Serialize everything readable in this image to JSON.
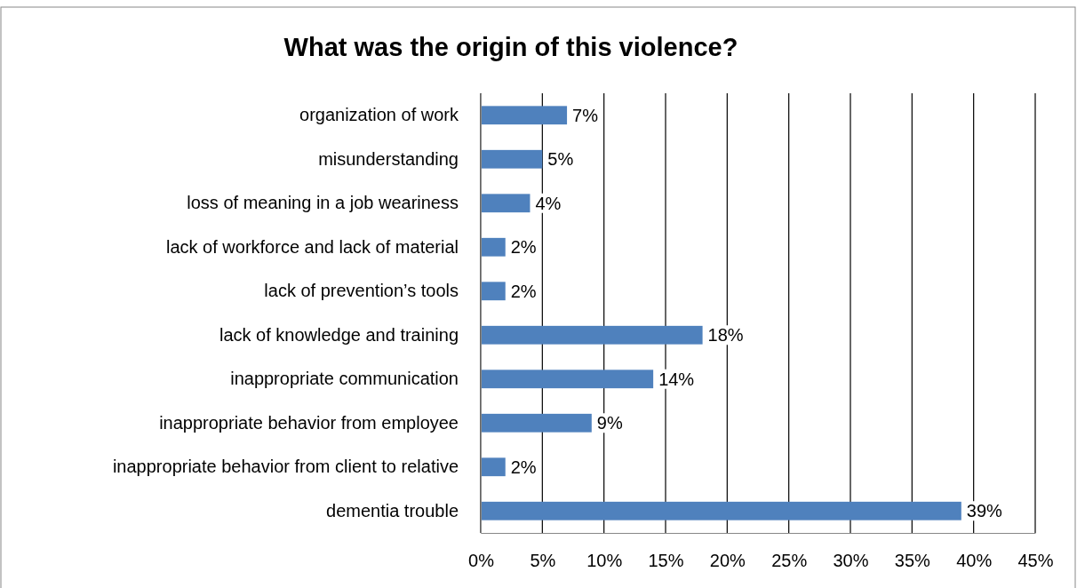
{
  "chart_data": {
    "type": "bar",
    "orientation": "horizontal",
    "title": "What was the origin of this violence?",
    "categories": [
      "organization of work",
      "misunderstanding",
      "loss of meaning in a job weariness",
      "lack of workforce and lack of material",
      "lack of prevention’s tools",
      "lack of knowledge and training",
      "inappropriate communication",
      "inappropriate behavior from employee",
      "inappropriate behavior from client to relative",
      "dementia trouble"
    ],
    "values": [
      7,
      5,
      4,
      2,
      2,
      18,
      14,
      9,
      2,
      39
    ],
    "color": "#4f81bd",
    "xlim": [
      0,
      45
    ],
    "xticks": [
      {
        "value": 0,
        "label": "0%"
      },
      {
        "value": 5,
        "label": "5%"
      },
      {
        "value": 10,
        "label": "10%"
      },
      {
        "value": 15,
        "label": "15%"
      },
      {
        "value": 20,
        "label": "20%"
      },
      {
        "value": 25,
        "label": "25%"
      },
      {
        "value": 30,
        "label": "30%"
      },
      {
        "value": 35,
        "label": "35%"
      },
      {
        "value": 40,
        "label": "40%"
      },
      {
        "value": 45,
        "label": "45%"
      }
    ],
    "value_labels": [
      "7%",
      "5%",
      "4%",
      "2%",
      "2%",
      "18%",
      "14%",
      "9%",
      "2%",
      "39%"
    ],
    "grid": "x"
  }
}
